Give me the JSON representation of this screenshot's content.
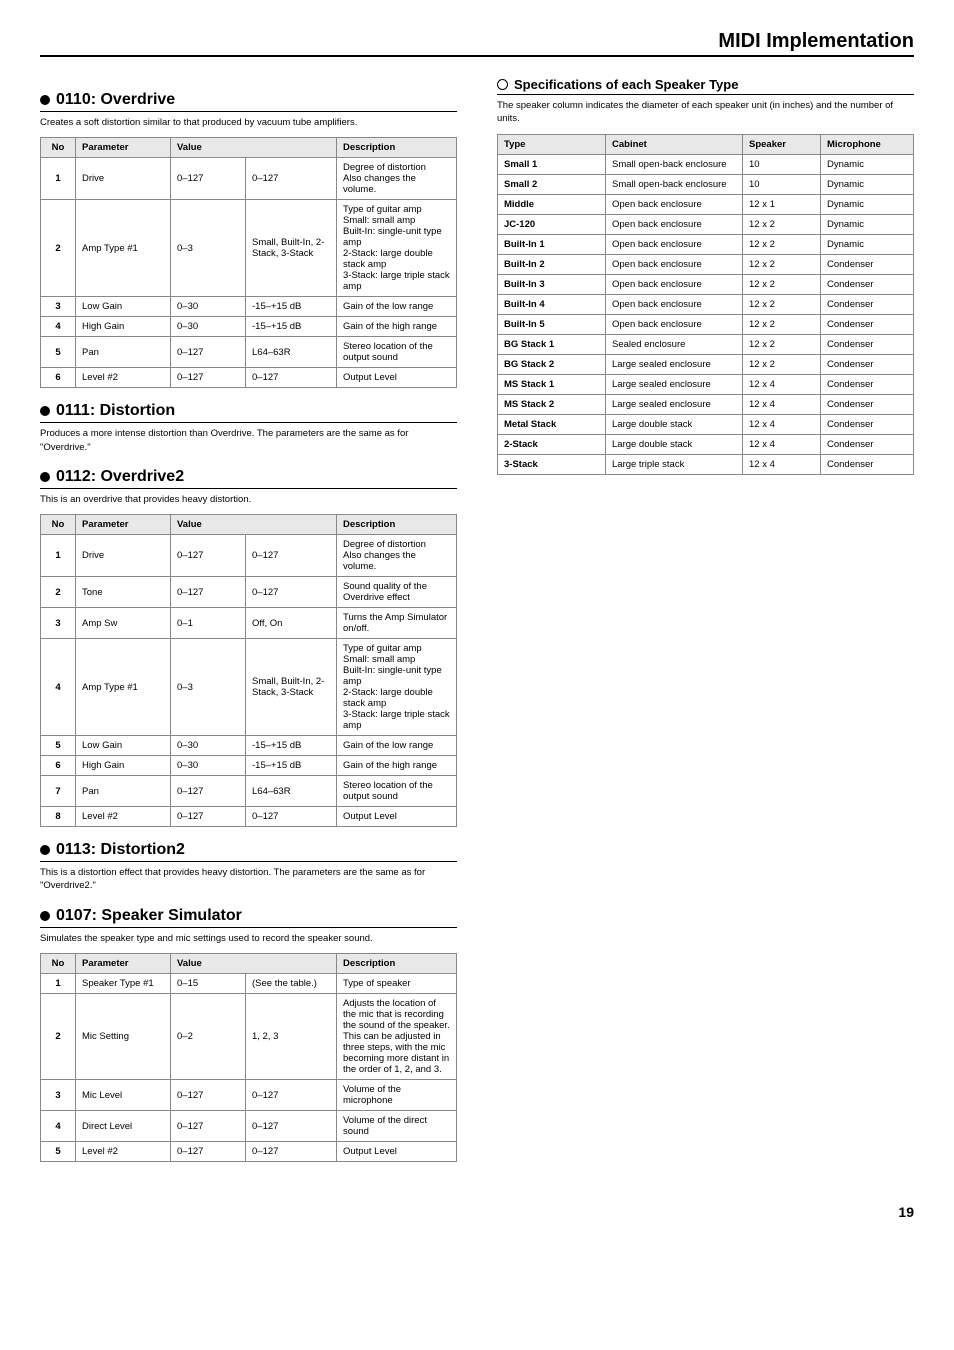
{
  "pageHeader": "MIDI Implementation",
  "pageNumber": "19",
  "sections": [
    {
      "id": "s0110",
      "title": "0110: Overdrive",
      "desc": "Creates a soft distortion similar to that produced by vacuum tube amplifiers.",
      "headers": [
        "No",
        "Parameter",
        "Value",
        "",
        "Description"
      ],
      "rows": [
        [
          "1",
          "Drive",
          "0–127",
          "0–127",
          "Degree of distortion\nAlso changes the volume."
        ],
        [
          "2",
          "Amp Type #1",
          "0–3",
          "Small, Built-In, 2-Stack, 3-Stack",
          "Type of guitar amp\nSmall: small amp\nBuilt-In: single-unit type amp\n2-Stack: large double stack amp\n3-Stack: large triple stack amp"
        ],
        [
          "3",
          "Low Gain",
          "0–30",
          "-15–+15 dB",
          "Gain of the low range"
        ],
        [
          "4",
          "High Gain",
          "0–30",
          "-15–+15 dB",
          "Gain of the high range"
        ],
        [
          "5",
          "Pan",
          "0–127",
          "L64–63R",
          "Stereo location of the output sound"
        ],
        [
          "6",
          "Level #2",
          "0–127",
          "0–127",
          "Output Level"
        ]
      ]
    },
    {
      "id": "s0111",
      "title": "0111: Distortion",
      "desc": "Produces a more intense distortion than Overdrive. The parameters are the same as for \"Overdrive.\"",
      "rows": []
    },
    {
      "id": "s0112",
      "title": "0112: Overdrive2",
      "desc": "This is an overdrive that provides heavy distortion.",
      "headers": [
        "No",
        "Parameter",
        "Value",
        "",
        "Description"
      ],
      "rows": [
        [
          "1",
          "Drive",
          "0–127",
          "0–127",
          "Degree of distortion\nAlso changes the volume."
        ],
        [
          "2",
          "Tone",
          "0–127",
          "0–127",
          "Sound quality of the Overdrive effect"
        ],
        [
          "3",
          "Amp Sw",
          "0–1",
          "Off, On",
          "Turns the Amp Simulator on/off."
        ],
        [
          "4",
          "Amp Type #1",
          "0–3",
          "Small, Built-In, 2-Stack, 3-Stack",
          "Type of guitar amp\nSmall: small amp\nBuilt-In: single-unit type amp\n2-Stack: large double stack amp\n3-Stack: large triple stack amp"
        ],
        [
          "5",
          "Low Gain",
          "0–30",
          "-15–+15 dB",
          "Gain of the low range"
        ],
        [
          "6",
          "High Gain",
          "0–30",
          "-15–+15 dB",
          "Gain of the high range"
        ],
        [
          "7",
          "Pan",
          "0–127",
          "L64–63R",
          "Stereo location of the output sound"
        ],
        [
          "8",
          "Level #2",
          "0–127",
          "0–127",
          "Output Level"
        ]
      ]
    },
    {
      "id": "s0113",
      "title": "0113: Distortion2",
      "desc": "This is a distortion effect that provides heavy distortion. The parameters are the same as for \"Overdrive2.\"",
      "rows": []
    },
    {
      "id": "s0107",
      "title": "0107: Speaker Simulator",
      "desc": "Simulates the speaker type and mic settings used to record the speaker sound.",
      "headers": [
        "No",
        "Parameter",
        "Value",
        "",
        "Description"
      ],
      "rows": [
        [
          "1",
          "Speaker Type #1",
          "0–15",
          "(See the table.)",
          "Type of speaker"
        ],
        [
          "2",
          "Mic Setting",
          "0–2",
          "1, 2, 3",
          "Adjusts the location of the mic that is recording the sound of the speaker.\nThis can be adjusted in three steps, with the mic becoming more distant in the order of 1, 2, and 3."
        ],
        [
          "3",
          "Mic Level",
          "0–127",
          "0–127",
          "Volume of the microphone"
        ],
        [
          "4",
          "Direct Level",
          "0–127",
          "0–127",
          "Volume of the direct sound"
        ],
        [
          "5",
          "Level #2",
          "0–127",
          "0–127",
          "Output Level"
        ]
      ]
    }
  ],
  "speakerSection": {
    "title": "Specifications of each Speaker Type",
    "desc": "The speaker column indicates the diameter of each speaker unit (in inches) and the number of units.",
    "headers": [
      "Type",
      "Cabinet",
      "Speaker",
      "Microphone"
    ],
    "rows": [
      [
        "Small 1",
        "Small open-back enclosure",
        "10",
        "Dynamic"
      ],
      [
        "Small 2",
        "Small open-back enclosure",
        "10",
        "Dynamic"
      ],
      [
        "Middle",
        "Open back enclosure",
        "12 x 1",
        "Dynamic"
      ],
      [
        "JC-120",
        "Open back enclosure",
        "12 x 2",
        "Dynamic"
      ],
      [
        "Built-In 1",
        "Open back enclosure",
        "12 x 2",
        "Dynamic"
      ],
      [
        "Built-In 2",
        "Open back enclosure",
        "12 x 2",
        "Condenser"
      ],
      [
        "Built-In 3",
        "Open back enclosure",
        "12 x 2",
        "Condenser"
      ],
      [
        "Built-In 4",
        "Open back enclosure",
        "12 x 2",
        "Condenser"
      ],
      [
        "Built-In 5",
        "Open back enclosure",
        "12 x 2",
        "Condenser"
      ],
      [
        "BG Stack 1",
        "Sealed enclosure",
        "12 x 2",
        "Condenser"
      ],
      [
        "BG Stack 2",
        "Large sealed enclosure",
        "12 x 2",
        "Condenser"
      ],
      [
        "MS Stack 1",
        "Large sealed enclosure",
        "12 x 4",
        "Condenser"
      ],
      [
        "MS Stack 2",
        "Large sealed enclosure",
        "12 x 4",
        "Condenser"
      ],
      [
        "Metal Stack",
        "Large double stack",
        "12 x 4",
        "Condenser"
      ],
      [
        "2-Stack",
        "Large double stack",
        "12 x 4",
        "Condenser"
      ],
      [
        "3-Stack",
        "Large triple stack",
        "12 x 4",
        "Condenser"
      ]
    ]
  }
}
